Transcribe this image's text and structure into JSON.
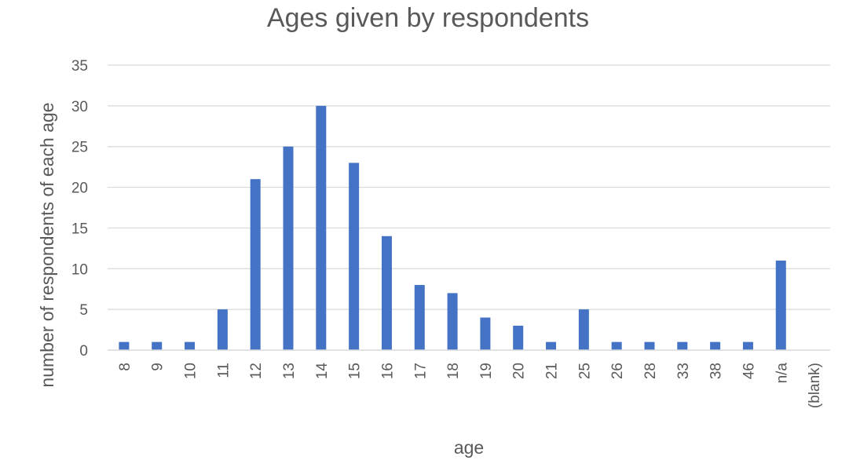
{
  "chart_data": {
    "type": "bar",
    "title": "Ages given by respondents",
    "xlabel": "age",
    "ylabel": "number of respondents of each age",
    "categories": [
      "8",
      "9",
      "10",
      "11",
      "12",
      "13",
      "14",
      "15",
      "16",
      "17",
      "18",
      "19",
      "20",
      "21",
      "25",
      "26",
      "28",
      "33",
      "38",
      "46",
      "n/a",
      "(blank)"
    ],
    "values": [
      1,
      1,
      1,
      5,
      21,
      25,
      30,
      23,
      14,
      8,
      7,
      4,
      3,
      1,
      5,
      1,
      1,
      1,
      1,
      1,
      11,
      0
    ],
    "ylim": [
      0,
      35
    ],
    "yticks": [
      0,
      5,
      10,
      15,
      20,
      25,
      30,
      35
    ],
    "grid": true,
    "legend": "none",
    "bar_color": "#4472C4",
    "grid_color": "#D9D9D9"
  }
}
